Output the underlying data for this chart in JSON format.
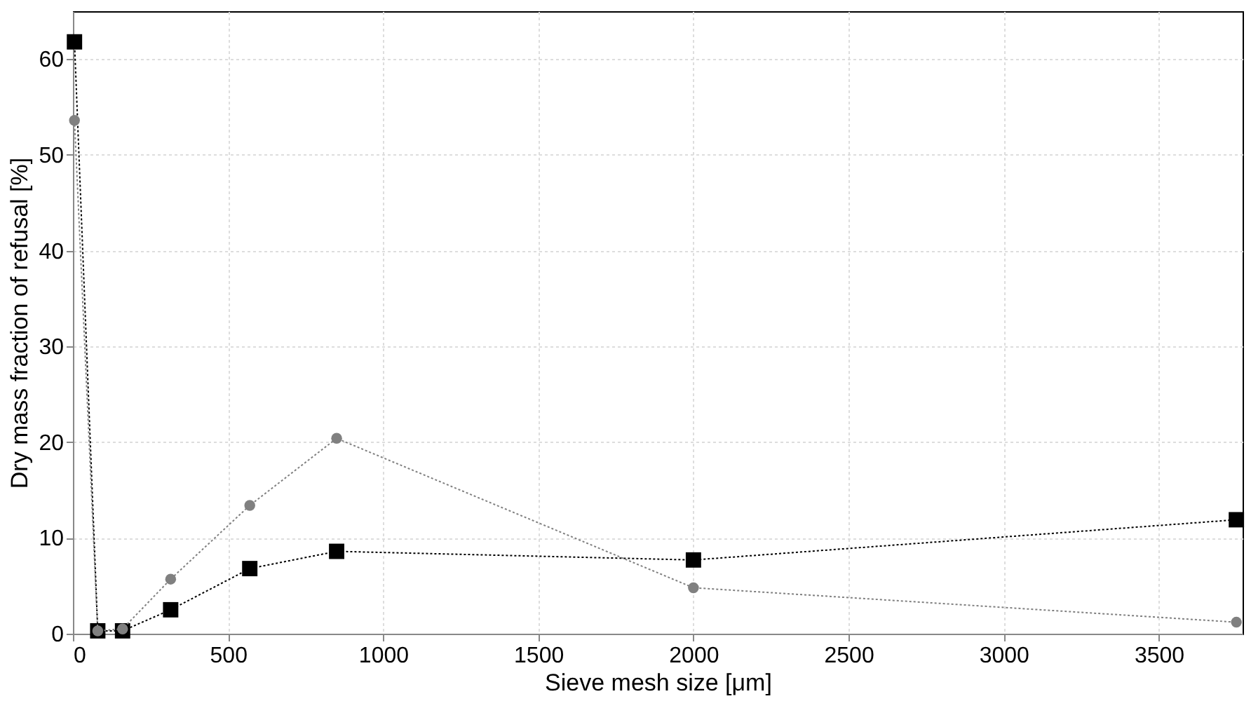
{
  "chart_data": {
    "type": "line",
    "xlabel": "Sieve mesh size [μm]",
    "ylabel": "Dry mass fraction of refusal [%]",
    "x": [
      5,
      80,
      160,
      315,
      570,
      850,
      2000,
      3750
    ],
    "series": [
      {
        "color": "#000000",
        "marker": "square",
        "values": [
          61.8,
          0.3,
          0.3,
          2.5,
          6.8,
          8.6,
          7.7,
          11.9
        ]
      },
      {
        "color": "#808080",
        "marker": "circle",
        "values": [
          53.6,
          0.3,
          0.5,
          5.7,
          13.4,
          20.4,
          4.8,
          1.2
        ]
      }
    ],
    "xlim": [
      0,
      3770
    ],
    "ylim": [
      0,
      65
    ],
    "xticks": [
      0,
      500,
      1000,
      1500,
      2000,
      2500,
      3000,
      3500
    ],
    "yticks": [
      0,
      10,
      20,
      30,
      40,
      50,
      60
    ],
    "grid": true,
    "line_style": "dotted"
  }
}
